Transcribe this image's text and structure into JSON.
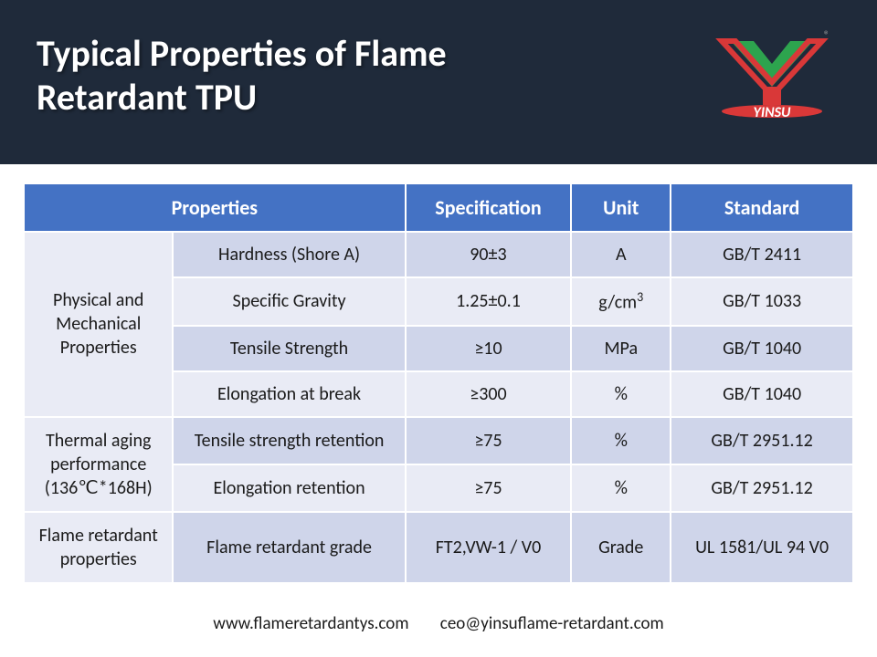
{
  "title": "Typical Properties of Flame Retardant TPU",
  "logo_text": "YINSU",
  "watermark": "YINSU",
  "table": {
    "header_bg": "#4472c4",
    "header_fg": "#ffffff",
    "row_odd_bg": "#cfd5ea",
    "row_even_bg": "#e9ebf5",
    "columns": [
      "Properties",
      "",
      "Specification",
      "Unit",
      "Standard"
    ],
    "col_labels": {
      "properties": "Properties",
      "specification": "Specification",
      "unit": "Unit",
      "standard": "Standard"
    },
    "groups": [
      {
        "label": "Physical and Mechanical Properties",
        "rows": [
          {
            "name": "Hardness (Shore A)",
            "spec": "90±3",
            "unit": "A",
            "std": "GB/T 2411"
          },
          {
            "name": "Specific Gravity",
            "spec": "1.25±0.1",
            "unit_html": "g/cm³",
            "unit": "g/cm3",
            "std": "GB/T 1033"
          },
          {
            "name": "Tensile Strength",
            "spec": "≥10",
            "unit": "MPa",
            "std": "GB/T 1040"
          },
          {
            "name": "Elongation at break",
            "spec": "≥300",
            "unit": "%",
            "std": "GB/T 1040"
          }
        ]
      },
      {
        "label": "Thermal aging performance (136℃*168H)",
        "rows": [
          {
            "name": "Tensile strength retention",
            "spec": "≥75",
            "unit": "%",
            "std": "GB/T 2951.12"
          },
          {
            "name": "Elongation retention",
            "spec": "≥75",
            "unit": "%",
            "std": "GB/T 2951.12"
          }
        ]
      },
      {
        "label": "Flame retardant properties",
        "rows": [
          {
            "name": "Flame retardant grade",
            "spec": "FT2,VW-1 / V0",
            "unit": "Grade",
            "std": "UL 1581/UL 94 V0"
          }
        ]
      }
    ]
  },
  "footer": {
    "website": "www.flameretardantys.com",
    "email": "ceo@yinsuflame-retardant.com"
  }
}
